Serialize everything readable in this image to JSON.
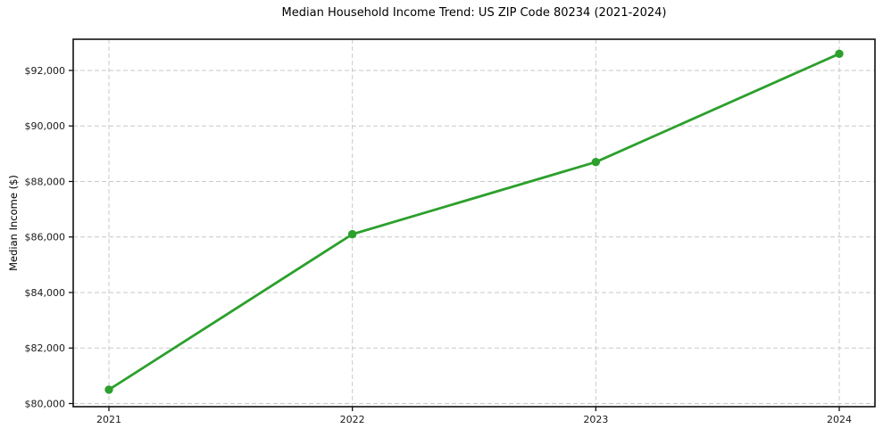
{
  "figure": {
    "title": "Median Household Income Trend: US ZIP Code 80234 (2021-2024)"
  },
  "chart_data": {
    "type": "line",
    "title": "Median Household Income Trend: US ZIP Code 80234 (2021-2024)",
    "xlabel": "",
    "ylabel": "Median Income ($)",
    "categories": [
      "2021",
      "2022",
      "2023",
      "2024"
    ],
    "series": [
      {
        "name": "Median Household Income",
        "values": [
          80500,
          86100,
          88700,
          92600
        ]
      }
    ],
    "y_ticks": [
      {
        "value": 80000,
        "label": "$80,000"
      },
      {
        "value": 82000,
        "label": "$82,000"
      },
      {
        "value": 84000,
        "label": "$84,000"
      },
      {
        "value": 86000,
        "label": "$86,000"
      },
      {
        "value": 88000,
        "label": "$88,000"
      },
      {
        "value": 90000,
        "label": "$90,000"
      },
      {
        "value": 92000,
        "label": "$92,000"
      }
    ],
    "ylim": [
      79887,
      93124
    ],
    "grid": true,
    "grid_style": "dashed",
    "grid_color": "#c9c9c9",
    "legend_position": "none",
    "line_color": "#2ca02c",
    "marker": "circle",
    "background_color": "#ffffff"
  }
}
